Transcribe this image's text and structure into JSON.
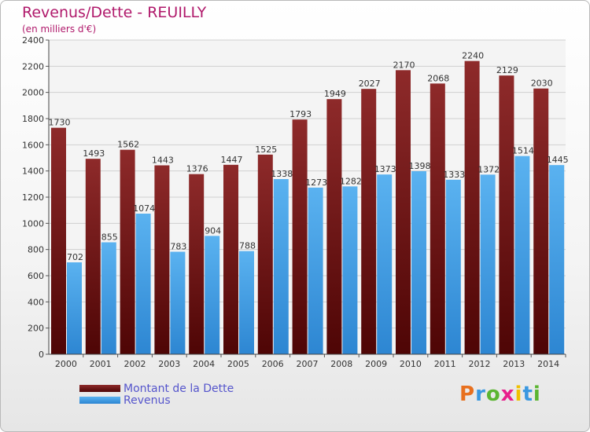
{
  "chart_data": {
    "type": "bar",
    "title": "Revenus/Dette - REUILLY",
    "subtitle": "(en milliers d'€)",
    "categories": [
      "2000",
      "2001",
      "2002",
      "2003",
      "2004",
      "2005",
      "2006",
      "2007",
      "2008",
      "2009",
      "2010",
      "2011",
      "2012",
      "2013",
      "2014"
    ],
    "series": [
      {
        "name": "Montant de la Dette",
        "color": "#8b1e1e",
        "values": [
          1730,
          1493,
          1562,
          1443,
          1376,
          1447,
          1525,
          1793,
          1949,
          2027,
          2170,
          2068,
          2240,
          2129,
          2030
        ]
      },
      {
        "name": "Revenus",
        "color": "#3a98e0",
        "values": [
          702,
          855,
          1074,
          783,
          904,
          788,
          1338,
          1273,
          1282,
          1373,
          1398,
          1333,
          1372,
          1514,
          1445
        ]
      }
    ],
    "ylim": [
      0,
      2400
    ],
    "yticks": [
      0,
      200,
      400,
      600,
      800,
      1000,
      1200,
      1400,
      1600,
      1800,
      2000,
      2200,
      2400
    ],
    "grid": true,
    "legend_position": "bottom-left"
  },
  "logo": {
    "letters": [
      "P",
      "r",
      "o",
      "x",
      "i",
      "t",
      "i"
    ],
    "colors": [
      "#e8701e",
      "#3a98e0",
      "#5bb531",
      "#e81e8c",
      "#f0c000",
      "#3a98e0",
      "#5bb531"
    ]
  }
}
